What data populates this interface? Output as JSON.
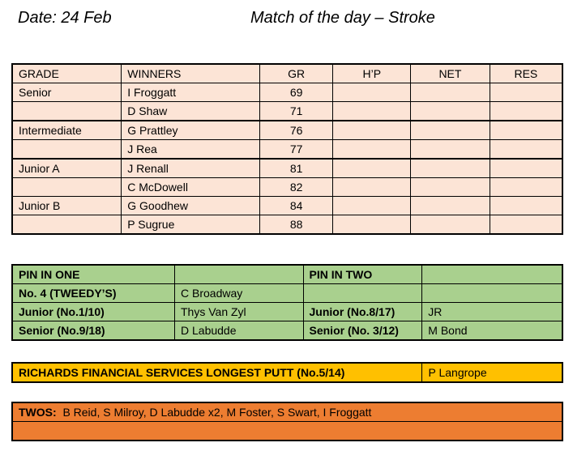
{
  "header": {
    "date": "Date: 24 Feb",
    "title": "Match of the day – Stroke"
  },
  "results": {
    "columns": [
      "GRADE",
      "WINNERS",
      "GR",
      "H’P",
      "NET",
      "RES"
    ],
    "rows": [
      {
        "grade": "Senior",
        "winner": "I Froggatt",
        "gr": "69"
      },
      {
        "grade": "",
        "winner": "D Shaw",
        "gr": "71"
      },
      {
        "grade": "Intermediate",
        "winner": "G Prattley",
        "gr": "76"
      },
      {
        "grade": "",
        "winner": "J Rea",
        "gr": "77"
      },
      {
        "grade": "Junior A",
        "winner": "J Renall",
        "gr": "81"
      },
      {
        "grade": "",
        "winner": "C McDowell",
        "gr": "82"
      },
      {
        "grade": "Junior B",
        "winner": "G Goodhew",
        "gr": "84"
      },
      {
        "grade": "",
        "winner": "P Sugrue",
        "gr": "88"
      }
    ]
  },
  "pins": {
    "header_left": "PIN IN ONE",
    "header_right": "PIN IN TWO",
    "rows": [
      {
        "label_left": "No. 4 (TWEEDY’S)",
        "value_left": "C Broadway",
        "label_right": "",
        "value_right": ""
      },
      {
        "label_left": "Junior (No.1/10)",
        "value_left": "Thys Van Zyl",
        "label_right": "Junior (No.8/17)",
        "value_right": "JR"
      },
      {
        "label_left": "Senior (No.9/18)",
        "value_left": "D Labudde",
        "label_right": "Senior (No. 3/12)",
        "value_right": "M Bond"
      }
    ]
  },
  "longest_putt": {
    "label": "RICHARDS FINANCIAL SERVICES LONGEST PUTT (No.5/14)",
    "winner": "P Langrope"
  },
  "twos": {
    "label": "TWOS:",
    "names": "B Reid, S Milroy, D Labudde x2, M Foster, S Swart, I Froggatt"
  },
  "colors": {
    "results_bg": "#fce4d6",
    "pins_bg": "#a9d08e",
    "putt_bg": "#ffc000",
    "twos_bg": "#ed7d31"
  }
}
